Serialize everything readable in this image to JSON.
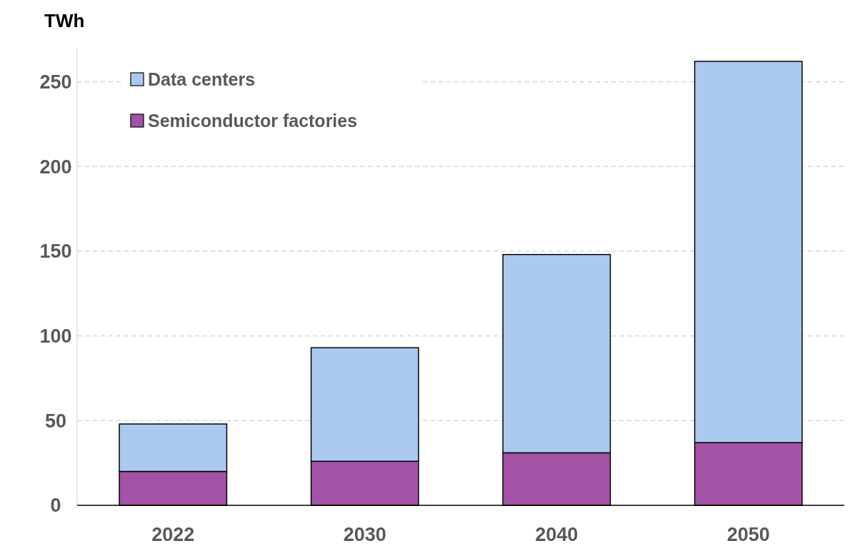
{
  "chart_data": {
    "type": "bar",
    "ylabel": "TWh",
    "categories": [
      "2022",
      "2030",
      "2040",
      "2050"
    ],
    "stacked": true,
    "series": [
      {
        "name": "Semiconductor factories",
        "color": "#a352a5",
        "values": [
          20,
          26,
          31,
          37
        ]
      },
      {
        "name": "Data centers",
        "color": "#abc9ef",
        "values": [
          28,
          67,
          117,
          225
        ]
      }
    ],
    "ylim": [
      0,
      270
    ],
    "yticks": [
      0,
      50,
      100,
      150,
      200,
      250
    ],
    "grid": "y",
    "legend": "top left"
  }
}
